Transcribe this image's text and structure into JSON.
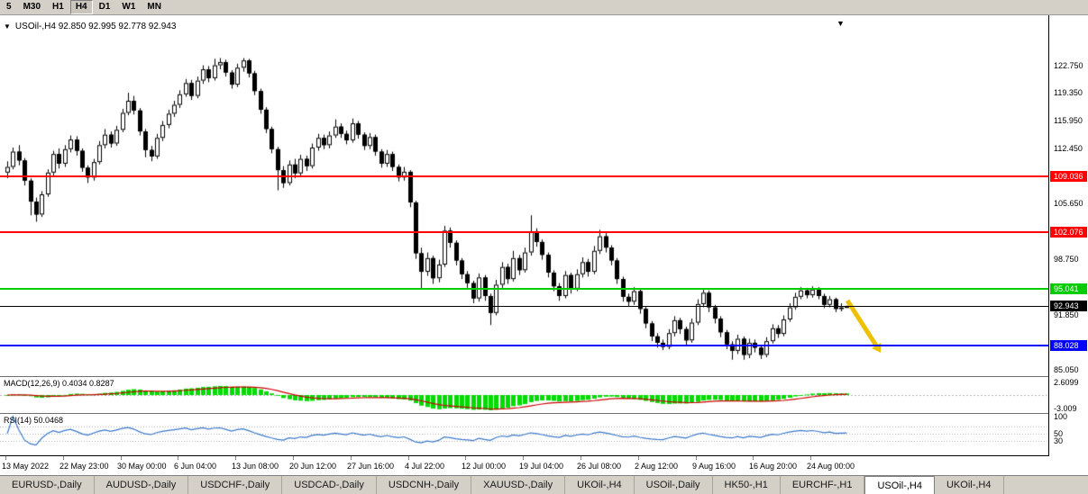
{
  "icons": {
    "title_dropdown": "▼",
    "shift_marker": "▼"
  },
  "toolbar": {
    "periods": [
      {
        "label": "5",
        "active": false
      },
      {
        "label": "M30",
        "active": false
      },
      {
        "label": "H1",
        "active": false
      },
      {
        "label": "H4",
        "active": true
      },
      {
        "label": "D1",
        "active": false
      },
      {
        "label": "W1",
        "active": false
      },
      {
        "label": "MN",
        "active": false
      }
    ]
  },
  "chart_data": {
    "type": "candlestick",
    "symbol": "USOil-",
    "timeframe": "H4",
    "title": "USOil-,H4 92.850 92.995 92.778 92.943",
    "ohlc_quote": {
      "open": 92.85,
      "high": 92.995,
      "low": 92.778,
      "close": 92.943
    },
    "candle_up_color": "#ffffff",
    "candle_down_color": "#000000",
    "price_axis_ticks": [
      {
        "label": "122.750",
        "price": 122.75
      },
      {
        "label": "119.350",
        "price": 119.35
      },
      {
        "label": "115.950",
        "price": 115.95
      },
      {
        "label": "112.450",
        "price": 112.45
      },
      {
        "label": "105.650",
        "price": 105.65
      },
      {
        "label": "98.750",
        "price": 98.75
      },
      {
        "label": "91.850",
        "price": 91.85
      },
      {
        "label": "85.050",
        "price": 85.05
      }
    ],
    "levels": [
      {
        "id": "resistance-red-upper",
        "price": 109.036,
        "label": "109.036",
        "color": "#ff0000",
        "thickness": 2
      },
      {
        "id": "resistance-red-lower",
        "price": 102.076,
        "label": "102.076",
        "color": "#ff0000",
        "thickness": 2
      },
      {
        "id": "support-green",
        "price": 95.041,
        "label": "95.041",
        "color": "#00cc00",
        "thickness": 2
      },
      {
        "id": "current-price",
        "price": 92.943,
        "label": "92.943",
        "color": "#000000",
        "thickness": 1
      },
      {
        "id": "support-blue",
        "price": 88.028,
        "label": "88.028",
        "color": "#0000ff",
        "thickness": 2
      }
    ],
    "time_labels": [
      {
        "text": "13 May 2022",
        "index": 0
      },
      {
        "text": "22 May 23:00",
        "index": 10
      },
      {
        "text": "30 May 00:00",
        "index": 20
      },
      {
        "text": "6 Jun 04:00",
        "index": 30
      },
      {
        "text": "13 Jun 08:00",
        "index": 40
      },
      {
        "text": "20 Jun 12:00",
        "index": 50
      },
      {
        "text": "27 Jun 16:00",
        "index": 60
      },
      {
        "text": "4 Jul 22:00",
        "index": 70
      },
      {
        "text": "12 Jul 00:00",
        "index": 80
      },
      {
        "text": "19 Jul 04:00",
        "index": 90
      },
      {
        "text": "26 Jul 08:00",
        "index": 100
      },
      {
        "text": "2 Aug 12:00",
        "index": 110
      },
      {
        "text": "9 Aug 16:00",
        "index": 120
      },
      {
        "text": "16 Aug 20:00",
        "index": 130
      },
      {
        "text": "24 Aug 00:00",
        "index": 140
      }
    ],
    "candles": [
      [
        109.5,
        110.9,
        108.8,
        110.2
      ],
      [
        110.2,
        112.6,
        109.9,
        112.1
      ],
      [
        112.1,
        112.9,
        110.4,
        111.0
      ],
      [
        111.0,
        111.3,
        107.9,
        108.5
      ],
      [
        108.5,
        108.8,
        104.2,
        105.9
      ],
      [
        105.9,
        106.4,
        103.4,
        104.3
      ],
      [
        104.3,
        107.2,
        104.0,
        106.8
      ],
      [
        106.8,
        109.9,
        106.5,
        109.5
      ],
      [
        109.5,
        112.2,
        109.1,
        111.8
      ],
      [
        111.8,
        112.5,
        110.0,
        110.6
      ],
      [
        110.6,
        112.9,
        110.2,
        112.4
      ],
      [
        112.4,
        114.1,
        112.0,
        113.6
      ],
      [
        113.6,
        114.0,
        111.6,
        112.2
      ],
      [
        112.2,
        112.5,
        109.6,
        110.1
      ],
      [
        110.1,
        110.4,
        108.2,
        108.9
      ],
      [
        108.9,
        111.2,
        108.5,
        110.8
      ],
      [
        110.8,
        113.4,
        110.5,
        112.9
      ],
      [
        112.9,
        114.9,
        112.5,
        114.2
      ],
      [
        114.2,
        114.6,
        112.6,
        113.1
      ],
      [
        113.1,
        115.3,
        112.8,
        114.8
      ],
      [
        114.8,
        117.4,
        114.5,
        116.9
      ],
      [
        116.9,
        119.4,
        116.6,
        118.4
      ],
      [
        118.4,
        119.0,
        116.7,
        117.2
      ],
      [
        117.2,
        117.5,
        114.1,
        114.6
      ],
      [
        114.6,
        114.9,
        111.4,
        112.3
      ],
      [
        112.3,
        112.8,
        110.9,
        111.5
      ],
      [
        111.5,
        114.3,
        111.2,
        113.8
      ],
      [
        113.8,
        115.9,
        113.4,
        115.4
      ],
      [
        115.4,
        117.3,
        115.0,
        116.8
      ],
      [
        116.8,
        118.4,
        116.4,
        117.9
      ],
      [
        117.9,
        119.7,
        117.5,
        119.2
      ],
      [
        119.2,
        121.1,
        118.9,
        120.6
      ],
      [
        120.6,
        121.0,
        118.5,
        119.0
      ],
      [
        119.0,
        121.4,
        118.7,
        120.9
      ],
      [
        120.9,
        122.8,
        120.5,
        122.3
      ],
      [
        122.3,
        122.7,
        120.7,
        121.2
      ],
      [
        121.2,
        123.6,
        120.9,
        122.8
      ],
      [
        122.8,
        123.7,
        122.3,
        123.2
      ],
      [
        123.2,
        123.5,
        121.4,
        121.9
      ],
      [
        121.9,
        122.2,
        119.9,
        120.4
      ],
      [
        120.4,
        123.0,
        120.1,
        122.5
      ],
      [
        122.5,
        123.7,
        122.0,
        123.4
      ],
      [
        123.4,
        123.6,
        121.3,
        121.8
      ],
      [
        121.8,
        122.1,
        119.1,
        119.6
      ],
      [
        119.6,
        119.9,
        116.8,
        117.3
      ],
      [
        117.3,
        117.6,
        114.4,
        114.9
      ],
      [
        114.9,
        115.2,
        111.9,
        112.4
      ],
      [
        112.4,
        112.7,
        107.3,
        109.8
      ],
      [
        109.8,
        110.3,
        107.6,
        108.2
      ],
      [
        108.2,
        111.0,
        107.9,
        110.5
      ],
      [
        110.5,
        111.2,
        108.8,
        109.4
      ],
      [
        109.4,
        111.7,
        109.0,
        111.2
      ],
      [
        111.2,
        111.6,
        109.7,
        110.3
      ],
      [
        110.3,
        113.1,
        110.0,
        112.6
      ],
      [
        112.6,
        114.3,
        112.2,
        113.8
      ],
      [
        113.8,
        114.2,
        112.4,
        112.9
      ],
      [
        112.9,
        114.6,
        112.5,
        114.1
      ],
      [
        114.1,
        116.1,
        113.8,
        115.2
      ],
      [
        115.2,
        115.6,
        113.8,
        114.3
      ],
      [
        114.3,
        114.7,
        113.0,
        113.5
      ],
      [
        113.5,
        116.2,
        113.2,
        115.6
      ],
      [
        115.6,
        115.9,
        113.7,
        114.2
      ],
      [
        114.2,
        114.5,
        112.3,
        112.8
      ],
      [
        112.8,
        114.4,
        112.4,
        113.9
      ],
      [
        113.9,
        114.2,
        111.6,
        112.1
      ],
      [
        112.1,
        112.4,
        110.1,
        110.6
      ],
      [
        110.6,
        112.3,
        110.2,
        111.8
      ],
      [
        111.8,
        112.1,
        109.7,
        110.2
      ],
      [
        110.2,
        110.5,
        108.4,
        108.9
      ],
      [
        108.9,
        110.2,
        108.5,
        109.6
      ],
      [
        109.6,
        109.8,
        105.2,
        105.8
      ],
      [
        105.8,
        106.0,
        98.8,
        99.5
      ],
      [
        99.5,
        100.2,
        95.1,
        97.2
      ],
      [
        97.2,
        99.6,
        96.7,
        98.9
      ],
      [
        98.9,
        99.2,
        95.7,
        96.4
      ],
      [
        96.4,
        98.7,
        95.9,
        98.1
      ],
      [
        98.1,
        102.9,
        97.8,
        102.3
      ],
      [
        102.3,
        102.7,
        100.2,
        100.8
      ],
      [
        100.8,
        101.1,
        98.0,
        98.6
      ],
      [
        98.6,
        98.9,
        96.3,
        96.9
      ],
      [
        96.9,
        97.3,
        95.2,
        95.8
      ],
      [
        95.8,
        96.1,
        93.3,
        93.9
      ],
      [
        93.9,
        97.0,
        93.5,
        96.5
      ],
      [
        96.5,
        96.8,
        93.6,
        94.2
      ],
      [
        94.2,
        94.5,
        90.6,
        92.1
      ],
      [
        92.1,
        96.2,
        91.8,
        95.6
      ],
      [
        95.6,
        98.4,
        95.2,
        97.8
      ],
      [
        97.8,
        98.2,
        95.7,
        96.3
      ],
      [
        96.3,
        99.8,
        96.0,
        98.9
      ],
      [
        98.9,
        99.3,
        96.8,
        97.4
      ],
      [
        97.4,
        100.2,
        97.1,
        99.6
      ],
      [
        99.6,
        104.2,
        99.2,
        102.2
      ],
      [
        102.2,
        102.6,
        100.3,
        100.9
      ],
      [
        100.9,
        101.2,
        98.7,
        99.3
      ],
      [
        99.3,
        99.6,
        96.5,
        97.1
      ],
      [
        97.1,
        97.4,
        94.8,
        95.4
      ],
      [
        95.4,
        95.8,
        93.6,
        94.2
      ],
      [
        94.2,
        97.3,
        93.9,
        96.8
      ],
      [
        96.8,
        97.1,
        94.5,
        95.1
      ],
      [
        95.1,
        97.5,
        94.8,
        96.9
      ],
      [
        96.9,
        99.0,
        96.5,
        98.4
      ],
      [
        98.4,
        98.8,
        96.6,
        97.2
      ],
      [
        97.2,
        100.4,
        96.9,
        99.8
      ],
      [
        99.8,
        102.4,
        99.4,
        101.6
      ],
      [
        101.6,
        102.0,
        99.6,
        100.2
      ],
      [
        100.2,
        100.5,
        98.0,
        98.6
      ],
      [
        98.6,
        98.9,
        95.7,
        96.3
      ],
      [
        96.3,
        96.6,
        93.5,
        94.1
      ],
      [
        94.1,
        94.5,
        92.9,
        93.5
      ],
      [
        93.5,
        95.3,
        93.1,
        94.8
      ],
      [
        94.8,
        95.1,
        92.0,
        92.6
      ],
      [
        92.6,
        92.9,
        90.2,
        90.8
      ],
      [
        90.8,
        91.1,
        88.6,
        89.2
      ],
      [
        89.2,
        89.6,
        87.8,
        88.4
      ],
      [
        88.4,
        88.8,
        87.5,
        87.9
      ],
      [
        87.9,
        90.1,
        87.6,
        89.6
      ],
      [
        89.6,
        91.7,
        89.2,
        91.2
      ],
      [
        91.2,
        91.5,
        89.5,
        90.1
      ],
      [
        90.1,
        90.4,
        88.1,
        88.7
      ],
      [
        88.7,
        91.4,
        88.4,
        90.9
      ],
      [
        90.9,
        93.8,
        90.6,
        93.2
      ],
      [
        93.2,
        95.0,
        92.8,
        94.6
      ],
      [
        94.6,
        94.9,
        92.2,
        92.8
      ],
      [
        92.8,
        93.1,
        90.8,
        91.4
      ],
      [
        91.4,
        91.7,
        89.1,
        89.7
      ],
      [
        89.7,
        90.0,
        87.6,
        88.2
      ],
      [
        88.2,
        88.6,
        86.3,
        87.4
      ],
      [
        87.4,
        89.4,
        87.0,
        88.9
      ],
      [
        88.9,
        89.2,
        86.3,
        86.9
      ],
      [
        86.9,
        88.9,
        86.5,
        88.4
      ],
      [
        88.4,
        88.8,
        87.2,
        87.8
      ],
      [
        87.8,
        88.1,
        86.4,
        86.9
      ],
      [
        86.9,
        89.1,
        86.6,
        88.6
      ],
      [
        88.6,
        90.7,
        88.3,
        90.2
      ],
      [
        90.2,
        90.6,
        89.0,
        89.5
      ],
      [
        89.5,
        91.8,
        89.2,
        91.3
      ],
      [
        91.3,
        93.3,
        91.0,
        92.8
      ],
      [
        92.8,
        94.6,
        92.5,
        94.1
      ],
      [
        94.1,
        95.3,
        93.8,
        94.9
      ],
      [
        94.9,
        95.2,
        93.9,
        94.3
      ],
      [
        94.3,
        95.4,
        94.0,
        95.0
      ],
      [
        95.0,
        95.3,
        93.8,
        94.2
      ],
      [
        94.2,
        94.5,
        92.7,
        93.1
      ],
      [
        93.1,
        94.2,
        92.8,
        93.8
      ],
      [
        93.8,
        94.0,
        92.2,
        92.6
      ],
      [
        92.6,
        93.3,
        92.3,
        92.8
      ],
      [
        92.85,
        92.995,
        92.778,
        92.943
      ]
    ],
    "indicators": {
      "macd": {
        "label": "MACD(12,26,9) 0.4034 0.8287",
        "params": [
          12,
          26,
          9
        ],
        "values_text": [
          "0.4034",
          "0.8287"
        ],
        "axis_labels": {
          "top": "2.6099",
          "bottom": "-3.009"
        },
        "histogram_color": "#00dc00",
        "signal_color": "#cc0000"
      },
      "rsi": {
        "label": "RSI(14) 50.0468",
        "period": 14,
        "value_text": "50.0468",
        "axis_labels": [
          "100",
          "50",
          "30"
        ],
        "axis_values": [
          100,
          50,
          30
        ],
        "levels": [
          70,
          50,
          30
        ],
        "line_color": "#3c78c8"
      }
    },
    "annotations": [
      {
        "id": "sell-arrow",
        "shape": "arrow-down-right",
        "color": "#edc100"
      }
    ]
  },
  "tabs": {
    "items": [
      {
        "label": "EURUSD-,Daily",
        "active": false
      },
      {
        "label": "AUDUSD-,Daily",
        "active": false
      },
      {
        "label": "USDCHF-,Daily",
        "active": false
      },
      {
        "label": "USDCAD-,Daily",
        "active": false
      },
      {
        "label": "USDCNH-,Daily",
        "active": false
      },
      {
        "label": "XAUUSD-,Daily",
        "active": false
      },
      {
        "label": "UKOil-,H4",
        "active": false
      },
      {
        "label": "USOil-,Daily",
        "active": false
      },
      {
        "label": "HK50-,H1",
        "active": false
      },
      {
        "label": "EURCHF-,H1",
        "active": false
      },
      {
        "label": "USOil-,H4",
        "active": true
      },
      {
        "label": "UKOil-,H4",
        "active": false
      }
    ]
  }
}
